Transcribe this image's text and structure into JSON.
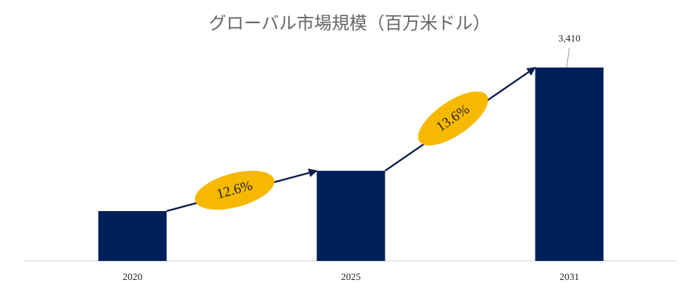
{
  "chart_data": {
    "type": "bar",
    "title": "グローバル市場規模（百万米ドル）",
    "categories": [
      "2020",
      "2025",
      "2031"
    ],
    "values": [
      880,
      1590,
      3410
    ],
    "value_labels": [
      null,
      null,
      "3,410"
    ],
    "color": "#00205b",
    "annotations": [
      "12.6%",
      "13.6%"
    ],
    "annotation_color": "#f7b800"
  }
}
